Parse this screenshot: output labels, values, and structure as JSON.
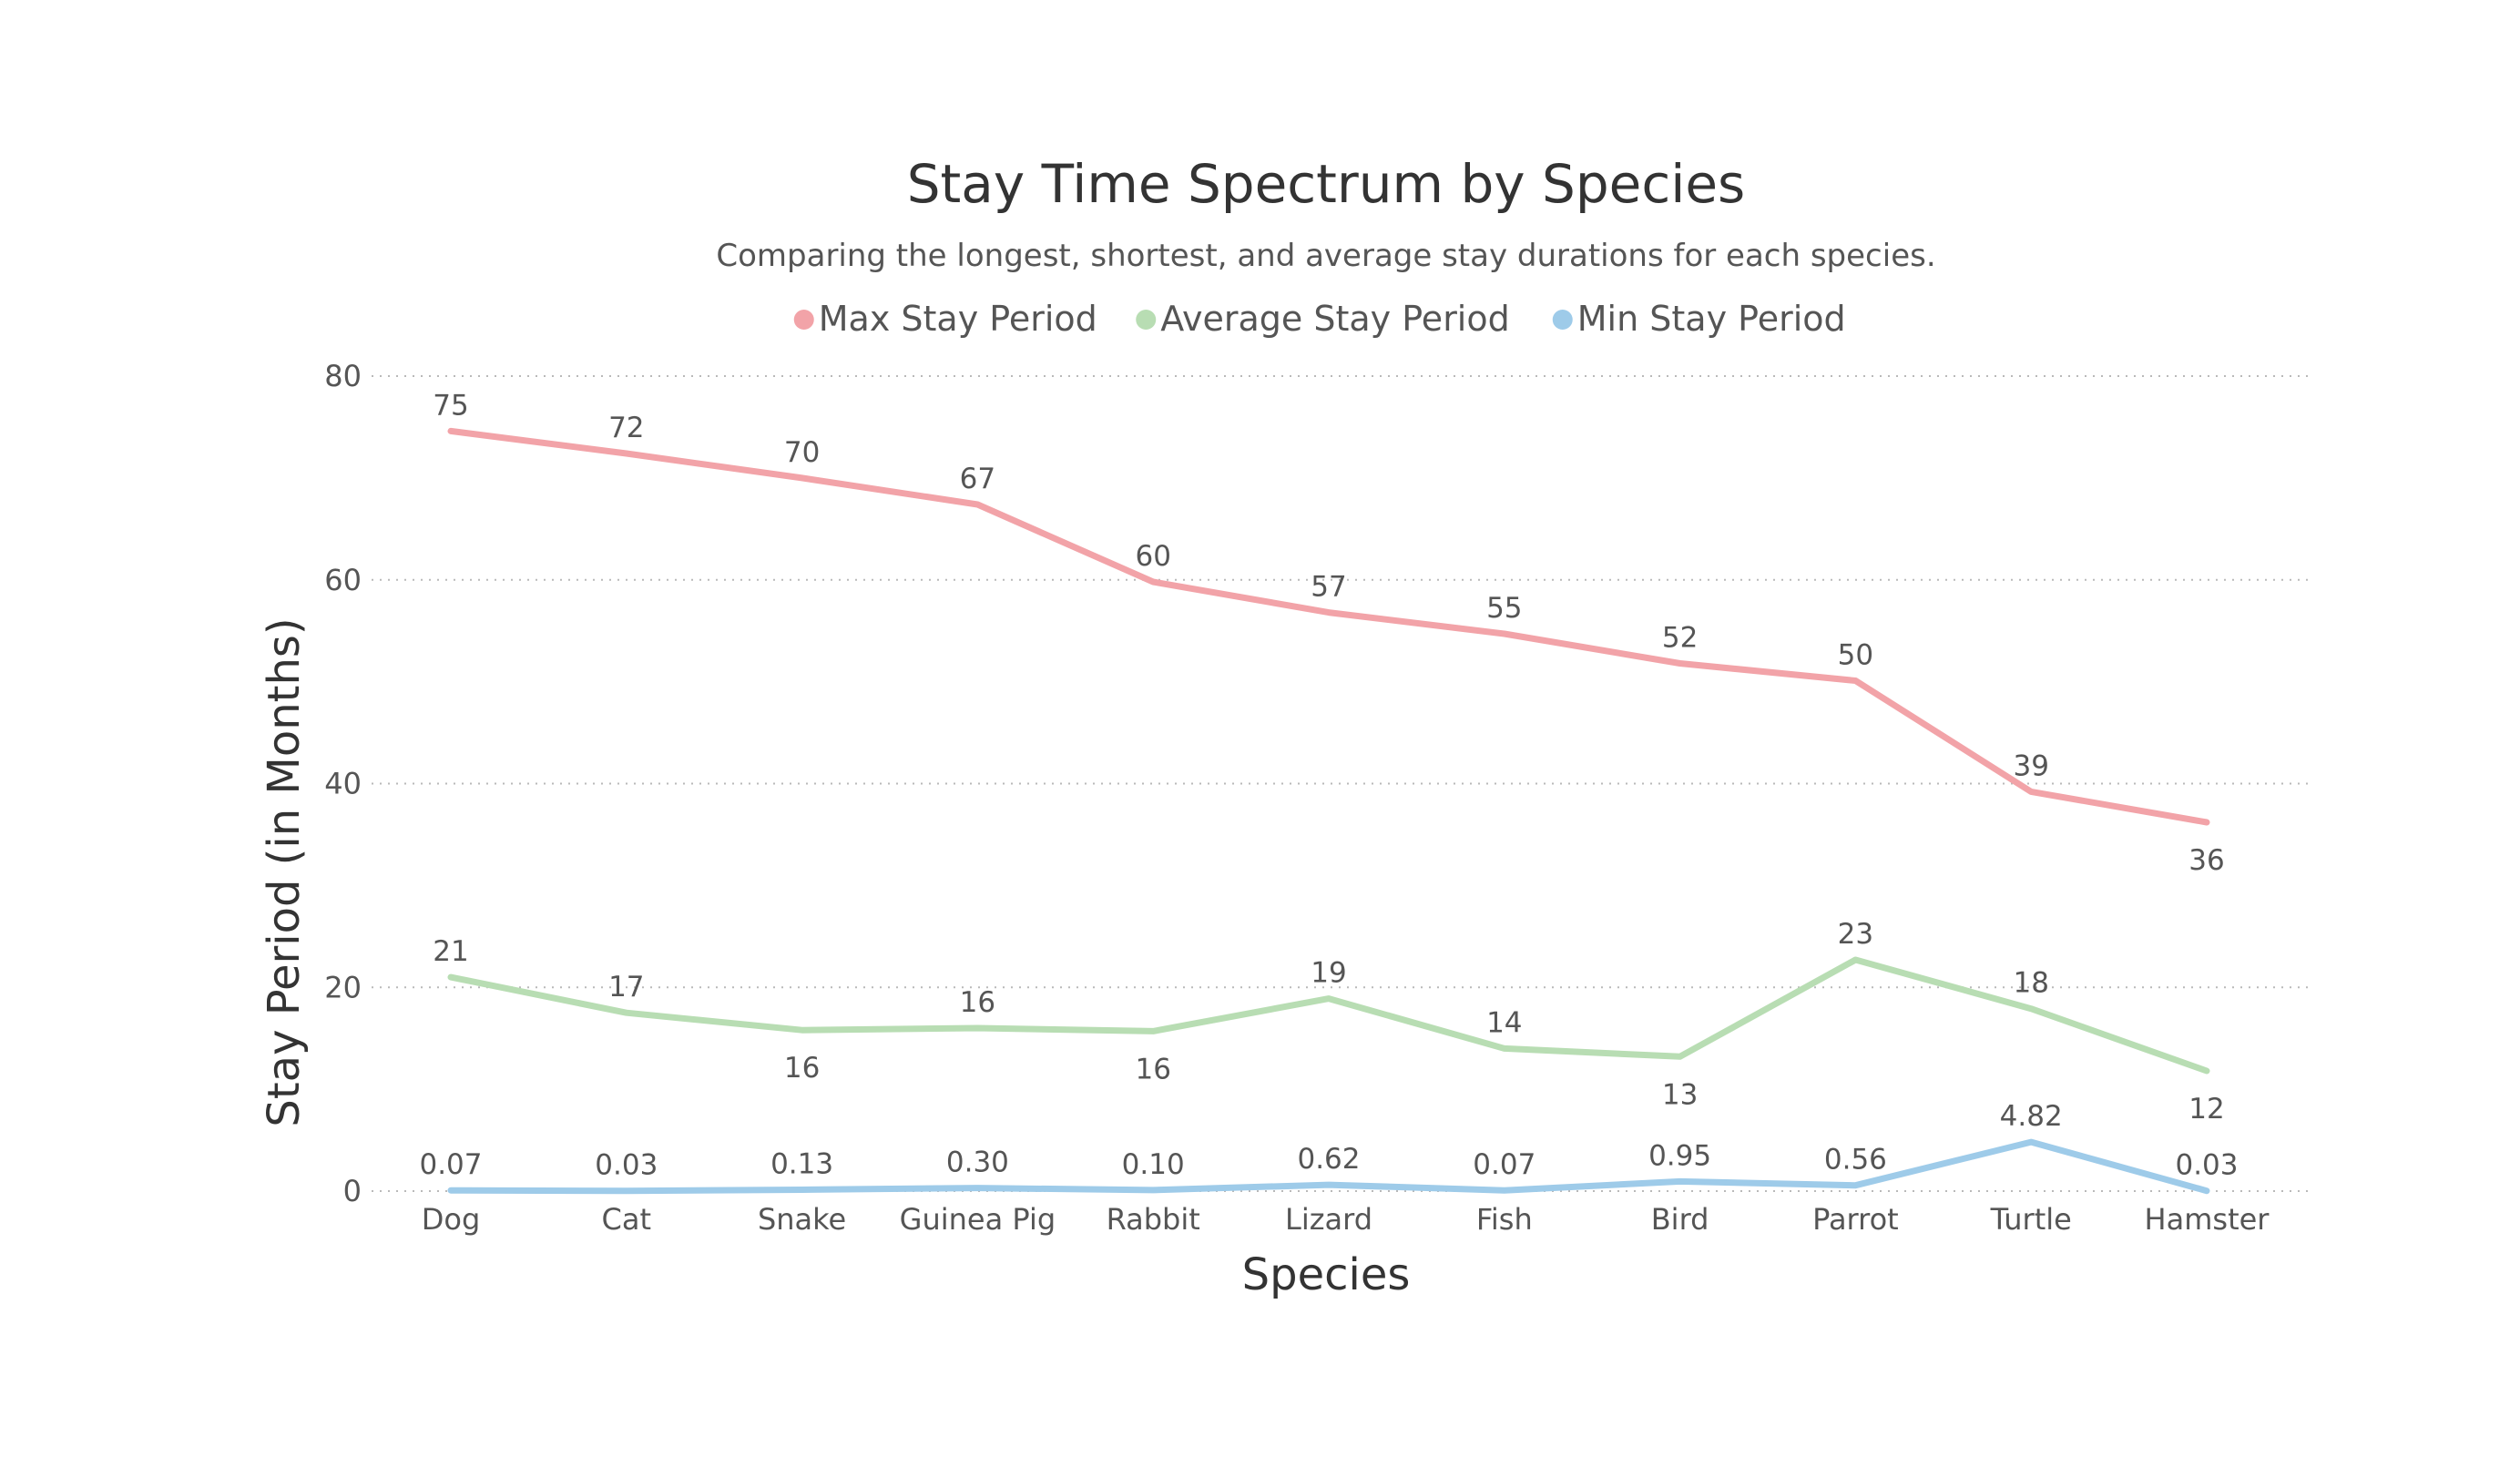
{
  "chart_data": {
    "type": "line",
    "title": "Stay Time Spectrum by Species",
    "subtitle": "Comparing the longest, shortest, and average stay durations for each species.",
    "xlabel": "Species",
    "ylabel": "Stay Period (in Months)",
    "ylim": [
      0,
      80
    ],
    "yticks": [
      0,
      20,
      40,
      60,
      80
    ],
    "grid": true,
    "legend_position": "top-center",
    "categories": [
      "Dog",
      "Cat",
      "Snake",
      "Guinea Pig",
      "Rabbit",
      "Lizard",
      "Fish",
      "Bird",
      "Parrot",
      "Turtle",
      "Hamster"
    ],
    "series": [
      {
        "name": "Max Stay Period",
        "color": "#f2a3a8",
        "values": [
          74.6,
          72.4,
          70.0,
          67.4,
          59.8,
          56.8,
          54.7,
          51.8,
          50.1,
          39.2,
          36.2
        ],
        "labels": [
          "75",
          "72",
          "70",
          "67",
          "60",
          "57",
          "55",
          "52",
          "50",
          "39",
          "36"
        ],
        "label_side": [
          "above",
          "above",
          "above",
          "above",
          "above",
          "above",
          "above",
          "above",
          "above",
          "above",
          "below"
        ]
      },
      {
        "name": "Average Stay Period",
        "color": "#b8ddb3",
        "values": [
          21.0,
          17.5,
          15.8,
          16.0,
          15.7,
          18.9,
          14.0,
          13.2,
          22.7,
          17.9,
          11.8
        ],
        "labels": [
          "21",
          "17",
          "16",
          "16",
          "16",
          "19",
          "14",
          "13",
          "23",
          "18",
          "12"
        ],
        "label_side": [
          "above",
          "above",
          "below",
          "above",
          "below",
          "above",
          "above",
          "below",
          "above",
          "above",
          "below"
        ]
      },
      {
        "name": "Min Stay Period",
        "color": "#9ecbe9",
        "values": [
          0.07,
          0.03,
          0.13,
          0.3,
          0.1,
          0.62,
          0.07,
          0.95,
          0.56,
          4.82,
          0.03
        ],
        "labels": [
          "0.07",
          "0.03",
          "0.13",
          "0.30",
          "0.10",
          "0.62",
          "0.07",
          "0.95",
          "0.56",
          "4.82",
          "0.03"
        ],
        "label_side": [
          "above",
          "above",
          "above",
          "above",
          "above",
          "above",
          "above",
          "above",
          "above",
          "above",
          "above"
        ]
      }
    ]
  }
}
